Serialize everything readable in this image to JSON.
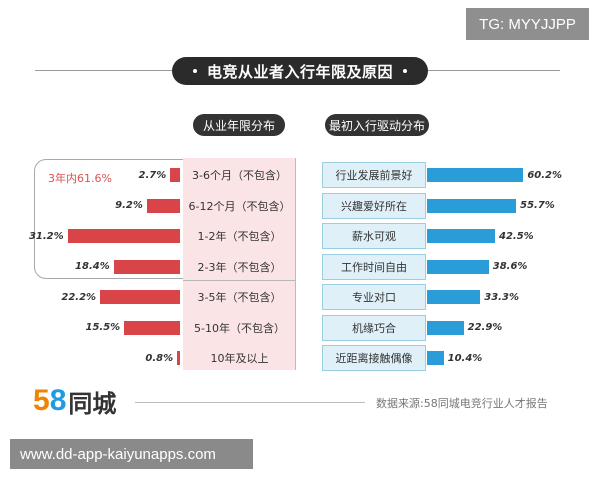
{
  "watermark_top": "TG: MYYJJPP",
  "watermark_bottom": "www.dd-app-kaiyunapps.com",
  "logo": {
    "digit1": "5",
    "digit2": "8",
    "text": "同城"
  },
  "source": "数据来源:58同城电竞行业人才报告",
  "colors": {
    "left_bar": "#d94448",
    "right_bar": "#2a9dd8",
    "accent_text": "#d9534f"
  },
  "chart_data": [
    {
      "type": "bar",
      "orientation": "horizontal",
      "title": "电竞从业者入行年限及原因",
      "subtitle": "从业年限分布",
      "group_annotation": "3年内61.6%",
      "categories": [
        "3-6个月（不包含）",
        "6-12个月（不包含）",
        "1-2年（不包含）",
        "2-3年（不包含）",
        "3-5年（不包含）",
        "5-10年（不包含）",
        "10年及以上"
      ],
      "values": [
        2.7,
        9.2,
        31.2,
        18.4,
        22.2,
        15.5,
        0.8
      ],
      "value_labels": [
        "2.7%",
        "9.2%",
        "31.2%",
        "18.4%",
        "22.2%",
        "15.5%",
        "0.8%"
      ],
      "unit": "%"
    },
    {
      "type": "bar",
      "orientation": "horizontal",
      "subtitle": "最初入行驱动分布",
      "categories": [
        "行业发展前景好",
        "兴趣爱好所在",
        "薪水可观",
        "工作时间自由",
        "专业对口",
        "机缘巧合",
        "近距离接触偶像"
      ],
      "values": [
        60.2,
        55.7,
        42.5,
        38.6,
        33.3,
        22.9,
        10.4
      ],
      "value_labels": [
        "60.2%",
        "55.7%",
        "42.5%",
        "38.6%",
        "33.3%",
        "22.9%",
        "10.4%"
      ],
      "unit": "%"
    }
  ]
}
